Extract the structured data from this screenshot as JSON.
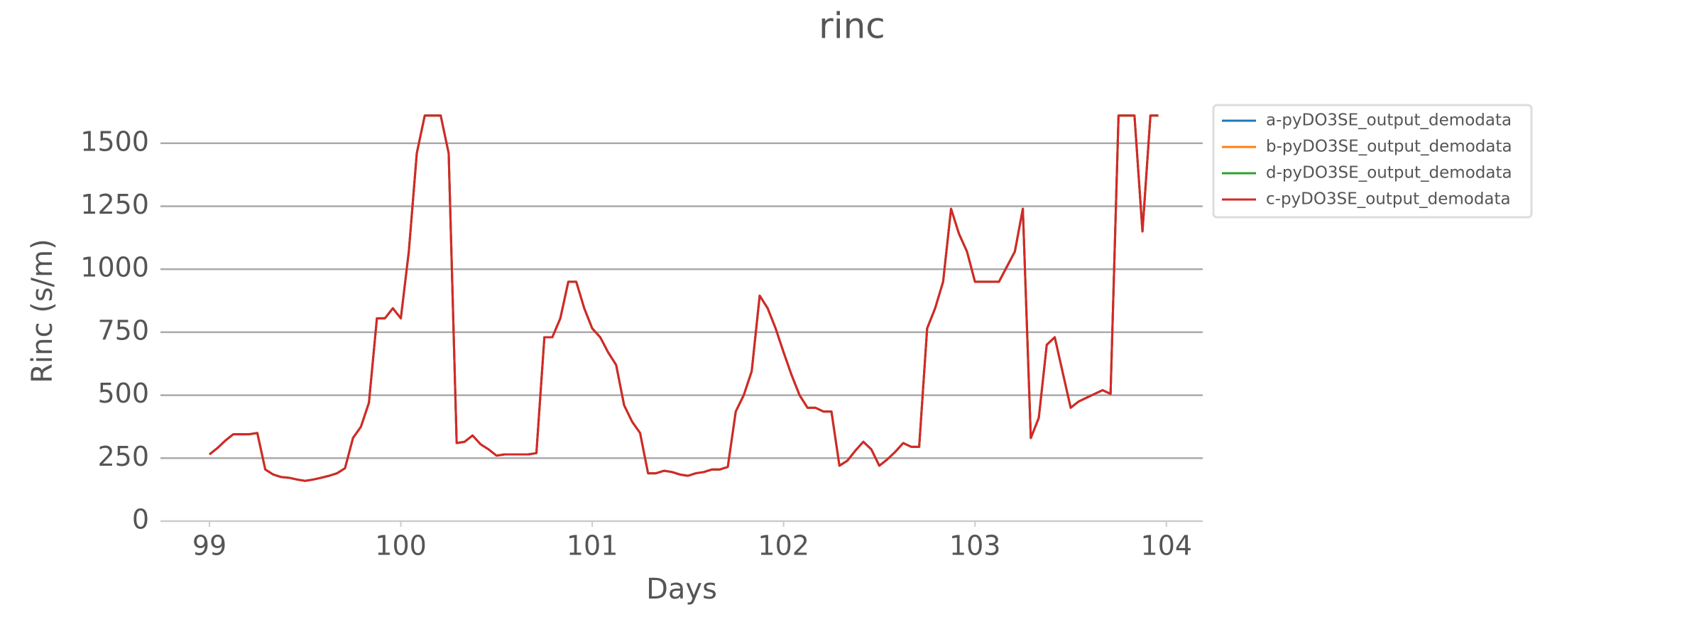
{
  "chart_data": {
    "type": "line",
    "title": "rinc",
    "xlabel": "Days",
    "ylabel": "Rinc (s/m)",
    "x": [
      99,
      99.0417,
      99.0833,
      99.125,
      99.1667,
      99.2083,
      99.25,
      99.2917,
      99.3333,
      99.375,
      99.4167,
      99.4583,
      99.5,
      99.5417,
      99.5833,
      99.625,
      99.6667,
      99.7083,
      99.75,
      99.7917,
      99.8333,
      99.875,
      99.9167,
      99.9583,
      100,
      100.0417,
      100.0833,
      100.125,
      100.1667,
      100.2083,
      100.25,
      100.2917,
      100.3333,
      100.375,
      100.4167,
      100.4583,
      100.5,
      100.5417,
      100.5833,
      100.625,
      100.6667,
      100.7083,
      100.75,
      100.7917,
      100.8333,
      100.875,
      100.9167,
      100.9583,
      101,
      101.0417,
      101.0833,
      101.125,
      101.1667,
      101.2083,
      101.25,
      101.2917,
      101.3333,
      101.375,
      101.4167,
      101.4583,
      101.5,
      101.5417,
      101.5833,
      101.625,
      101.6667,
      101.7083,
      101.75,
      101.7917,
      101.8333,
      101.875,
      101.9167,
      101.9583,
      102,
      102.0417,
      102.0833,
      102.125,
      102.1667,
      102.2083,
      102.25,
      102.2917,
      102.3333,
      102.375,
      102.4167,
      102.4583,
      102.5,
      102.5417,
      102.5833,
      102.625,
      102.6667,
      102.7083,
      102.75,
      102.7917,
      102.8333,
      102.875,
      102.9167,
      102.9583,
      103,
      103.0417,
      103.0833,
      103.125,
      103.1667,
      103.2083,
      103.25,
      103.2917,
      103.3333,
      103.375,
      103.4167,
      103.4583,
      103.5,
      103.5417,
      103.5833,
      103.625,
      103.6667,
      103.7083,
      103.75,
      103.7917,
      103.8333,
      103.875,
      103.9167,
      103.9583
    ],
    "series": [
      {
        "name": "a-pyDO3SE_output_demodata",
        "color": "#1f77b4",
        "values": [
          265,
          290,
          320,
          345,
          345,
          345,
          350,
          205,
          185,
          175,
          172,
          165,
          160,
          165,
          172,
          180,
          190,
          210,
          330,
          375,
          470,
          805,
          805,
          845,
          805,
          1070,
          1460,
          1610,
          1610,
          1610,
          1460,
          310,
          315,
          340,
          305,
          285,
          260,
          265,
          265,
          265,
          265,
          270,
          730,
          730,
          805,
          950,
          950,
          845,
          765,
          730,
          670,
          620,
          460,
          395,
          350,
          190,
          190,
          200,
          195,
          185,
          180,
          190,
          195,
          205,
          205,
          215,
          435,
          500,
          595,
          895,
          845,
          765,
          670,
          580,
          500,
          450,
          450,
          435,
          435,
          220,
          240,
          280,
          315,
          285,
          220,
          245,
          275,
          310,
          295,
          295,
          765,
          845,
          950,
          1240,
          1140,
          1070,
          950,
          950,
          950,
          950,
          1010,
          1070,
          1240,
          330,
          410,
          700,
          730,
          590,
          450,
          475,
          490,
          505,
          520,
          505,
          1610,
          1610,
          1610,
          1150,
          1610,
          1610
        ]
      },
      {
        "name": "b-pyDO3SE_output_demodata",
        "color": "#ff7f0e",
        "values": [
          265,
          290,
          320,
          345,
          345,
          345,
          350,
          205,
          185,
          175,
          172,
          165,
          160,
          165,
          172,
          180,
          190,
          210,
          330,
          375,
          470,
          805,
          805,
          845,
          805,
          1070,
          1460,
          1610,
          1610,
          1610,
          1460,
          310,
          315,
          340,
          305,
          285,
          260,
          265,
          265,
          265,
          265,
          270,
          730,
          730,
          805,
          950,
          950,
          845,
          765,
          730,
          670,
          620,
          460,
          395,
          350,
          190,
          190,
          200,
          195,
          185,
          180,
          190,
          195,
          205,
          205,
          215,
          435,
          500,
          595,
          895,
          845,
          765,
          670,
          580,
          500,
          450,
          450,
          435,
          435,
          220,
          240,
          280,
          315,
          285,
          220,
          245,
          275,
          310,
          295,
          295,
          765,
          845,
          950,
          1240,
          1140,
          1070,
          950,
          950,
          950,
          950,
          1010,
          1070,
          1240,
          330,
          410,
          700,
          730,
          590,
          450,
          475,
          490,
          505,
          520,
          505,
          1610,
          1610,
          1610,
          1150,
          1610,
          1610
        ]
      },
      {
        "name": "d-pyDO3SE_output_demodata",
        "color": "#2ca02c",
        "values": [
          265,
          290,
          320,
          345,
          345,
          345,
          350,
          205,
          185,
          175,
          172,
          165,
          160,
          165,
          172,
          180,
          190,
          210,
          330,
          375,
          470,
          805,
          805,
          845,
          805,
          1070,
          1460,
          1610,
          1610,
          1610,
          1460,
          310,
          315,
          340,
          305,
          285,
          260,
          265,
          265,
          265,
          265,
          270,
          730,
          730,
          805,
          950,
          950,
          845,
          765,
          730,
          670,
          620,
          460,
          395,
          350,
          190,
          190,
          200,
          195,
          185,
          180,
          190,
          195,
          205,
          205,
          215,
          435,
          500,
          595,
          895,
          845,
          765,
          670,
          580,
          500,
          450,
          450,
          435,
          435,
          220,
          240,
          280,
          315,
          285,
          220,
          245,
          275,
          310,
          295,
          295,
          765,
          845,
          950,
          1240,
          1140,
          1070,
          950,
          950,
          950,
          950,
          1010,
          1070,
          1240,
          330,
          410,
          700,
          730,
          590,
          450,
          475,
          490,
          505,
          520,
          505,
          1610,
          1610,
          1610,
          1150,
          1610,
          1610
        ]
      },
      {
        "name": "c-pyDO3SE_output_demodata",
        "color": "#d62728",
        "values": [
          265,
          290,
          320,
          345,
          345,
          345,
          350,
          205,
          185,
          175,
          172,
          165,
          160,
          165,
          172,
          180,
          190,
          210,
          330,
          375,
          470,
          805,
          805,
          845,
          805,
          1070,
          1460,
          1610,
          1610,
          1610,
          1460,
          310,
          315,
          340,
          305,
          285,
          260,
          265,
          265,
          265,
          265,
          270,
          730,
          730,
          805,
          950,
          950,
          845,
          765,
          730,
          670,
          620,
          460,
          395,
          350,
          190,
          190,
          200,
          195,
          185,
          180,
          190,
          195,
          205,
          205,
          215,
          435,
          500,
          595,
          895,
          845,
          765,
          670,
          580,
          500,
          450,
          450,
          435,
          435,
          220,
          240,
          280,
          315,
          285,
          220,
          245,
          275,
          310,
          295,
          295,
          765,
          845,
          950,
          1240,
          1140,
          1070,
          950,
          950,
          950,
          950,
          1010,
          1070,
          1240,
          330,
          410,
          700,
          730,
          590,
          450,
          475,
          490,
          505,
          520,
          505,
          1610,
          1610,
          1610,
          1150,
          1610,
          1610
        ]
      }
    ],
    "xlim": [
      98.744,
      104.19
    ],
    "xticks": [
      99,
      100,
      101,
      102,
      103,
      104
    ],
    "ylim": [
      0,
      1660
    ],
    "yticks": [
      0,
      250,
      500,
      750,
      1000,
      1250,
      1500
    ],
    "grid": true,
    "legend": "outside"
  }
}
